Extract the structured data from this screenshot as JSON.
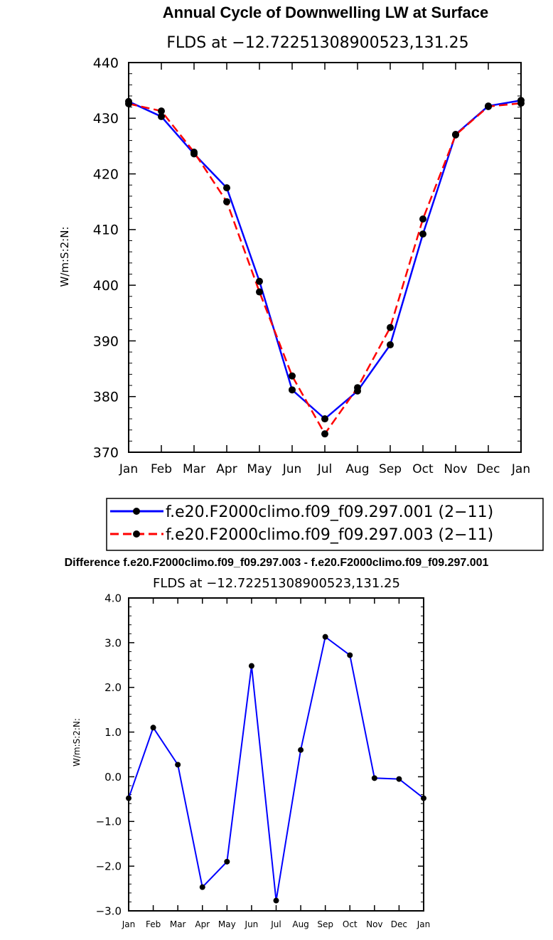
{
  "chart_data": [
    {
      "type": "line",
      "title": "Annual Cycle of Downwelling LW at Surface",
      "subtitle": "FLDS at −12.72251308900523,131.25",
      "xlabel": "",
      "ylabel": "W/m:S:2:N:",
      "ylim": [
        370,
        440
      ],
      "yticks": [
        "370",
        "380",
        "390",
        "400",
        "410",
        "420",
        "430",
        "440"
      ],
      "categories": [
        "Jan",
        "Feb",
        "Mar",
        "Apr",
        "May",
        "Jun",
        "Jul",
        "Aug",
        "Sep",
        "Oct",
        "Nov",
        "Dec",
        "Jan"
      ],
      "series": [
        {
          "name": "f.e20.F2000climo.f09_f09.297.001 (2−11)",
          "color": "#0000ff",
          "dash": "solid",
          "values": [
            433.0,
            430.3,
            423.6,
            417.5,
            400.7,
            381.2,
            376.0,
            381.0,
            389.3,
            409.2,
            427.1,
            432.2,
            433.2
          ]
        },
        {
          "name": "f.e20.F2000climo.f09_f09.297.003 (2−11)",
          "color": "#ff0000",
          "dash": "dashed",
          "values": [
            432.6,
            431.3,
            423.9,
            415.0,
            398.8,
            383.7,
            373.3,
            381.6,
            392.4,
            411.9,
            427.0,
            432.1,
            432.7
          ]
        }
      ],
      "legend_position": "bottom"
    },
    {
      "type": "line",
      "title": "Difference f.e20.F2000climo.f09_f09.297.003 - f.e20.F2000climo.f09_f09.297.001",
      "subtitle": "FLDS at −12.72251308900523,131.25",
      "xlabel": "",
      "ylabel": "W/m:S:2:N:",
      "ylim": [
        -3.0,
        4.0
      ],
      "yticks": [
        "−3.0",
        "−2.0",
        "−1.0",
        "0.0",
        "1.0",
        "2.0",
        "3.0",
        "4.0"
      ],
      "categories": [
        "Jan",
        "Feb",
        "Mar",
        "Apr",
        "May",
        "Jun",
        "Jul",
        "Aug",
        "Sep",
        "Oct",
        "Nov",
        "Dec",
        "Jan"
      ],
      "series": [
        {
          "name": "Difference",
          "color": "#0000ff",
          "dash": "solid",
          "values": [
            -0.48,
            1.1,
            0.27,
            -2.47,
            -1.9,
            2.48,
            -2.77,
            0.6,
            3.13,
            2.72,
            -0.03,
            -0.05,
            -0.48
          ]
        }
      ]
    }
  ]
}
